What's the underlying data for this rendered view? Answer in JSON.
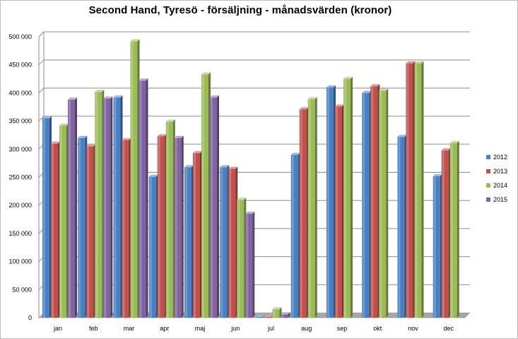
{
  "colors": {
    "2012": "#4a7fc1",
    "2013": "#c0504d",
    "2014": "#9bbb59",
    "2015": "#8064a2",
    "gridline": "#8c8c8c",
    "floor": "#a6a6a6"
  },
  "chart_data": {
    "type": "bar",
    "title": "Second Hand, Tyresö - försäljning - månadsvärden (kronor)",
    "xlabel": "",
    "ylabel": "",
    "ylim": [
      0,
      500000
    ],
    "ytick_values": [
      0,
      50000,
      100000,
      150000,
      200000,
      250000,
      300000,
      350000,
      400000,
      450000,
      500000
    ],
    "ytick_labels": [
      "0",
      "50 000",
      "100 000",
      "150 000",
      "200 000",
      "250 000",
      "300 000",
      "350 000",
      "400 000",
      "450 000",
      "500 000"
    ],
    "grid": true,
    "legend_position": "right",
    "categories": [
      "jan",
      "feb",
      "mar",
      "apr",
      "maj",
      "jun",
      "jul",
      "aug",
      "sep",
      "okt",
      "nov",
      "dec"
    ],
    "series": [
      {
        "name": "2012",
        "values": [
          355000,
          320000,
          392000,
          251000,
          268000,
          268000,
          1000,
          290000,
          410000,
          400000,
          322000,
          252000
        ]
      },
      {
        "name": "2013",
        "values": [
          310000,
          305000,
          316000,
          323000,
          293000,
          265000,
          1000,
          371000,
          376000,
          412000,
          453000,
          298000
        ]
      },
      {
        "name": "2014",
        "values": [
          342000,
          402000,
          492000,
          349000,
          433000,
          210000,
          15000,
          389000,
          425000,
          404000,
          453000,
          311000
        ]
      },
      {
        "name": "2015",
        "values": [
          388000,
          390000,
          422000,
          320000,
          392000,
          185000,
          6000,
          null,
          null,
          null,
          null,
          null
        ]
      }
    ]
  }
}
